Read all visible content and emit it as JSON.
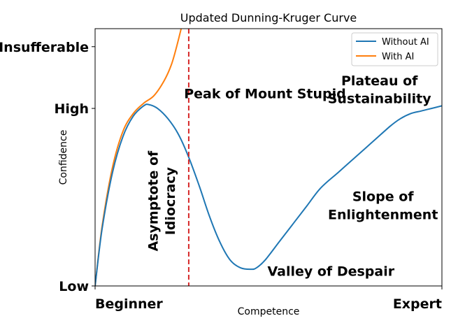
{
  "chart_data": {
    "type": "line",
    "title": "Updated Dunning-Kruger Curve",
    "xlabel": "Competence",
    "ylabel": "Confidence",
    "xlim": [
      0,
      1
    ],
    "ylim": [
      0,
      1
    ],
    "x_ticks": [
      {
        "value": 0,
        "label": "Beginner"
      },
      {
        "value": 1,
        "label": "Expert"
      }
    ],
    "y_ticks": [
      {
        "value": 0,
        "label": "Low"
      },
      {
        "value": 0.69,
        "label": "High"
      },
      {
        "value": 0.93,
        "label": "Insufferable"
      }
    ],
    "legend_position": "top-right",
    "series": [
      {
        "name": "Without AI",
        "color": "#1f77b4",
        "x": [
          0,
          0.02,
          0.05,
          0.08,
          0.11,
          0.14,
          0.155,
          0.18,
          0.21,
          0.24,
          0.27,
          0.3,
          0.33,
          0.36,
          0.39,
          0.42,
          0.45,
          0.465,
          0.49,
          0.53,
          0.57,
          0.61,
          0.65,
          0.7,
          0.75,
          0.8,
          0.85,
          0.88,
          0.91,
          0.94,
          0.97,
          1.0
        ],
        "y": [
          0,
          0.22,
          0.44,
          0.58,
          0.66,
          0.7,
          0.705,
          0.69,
          0.65,
          0.59,
          0.5,
          0.39,
          0.27,
          0.17,
          0.1,
          0.07,
          0.065,
          0.07,
          0.1,
          0.17,
          0.24,
          0.31,
          0.38,
          0.44,
          0.5,
          0.56,
          0.62,
          0.65,
          0.67,
          0.68,
          0.69,
          0.7
        ]
      },
      {
        "name": "With AI",
        "color": "#ff7f0e",
        "x": [
          0,
          0.02,
          0.05,
          0.08,
          0.11,
          0.14,
          0.17,
          0.2,
          0.22,
          0.235,
          0.25
        ],
        "y": [
          0,
          0.23,
          0.46,
          0.6,
          0.67,
          0.71,
          0.74,
          0.8,
          0.86,
          0.93,
          1.01
        ]
      }
    ],
    "vlines": [
      {
        "x": 0.27,
        "color": "#d62728",
        "style": "dashed"
      }
    ],
    "annotations": [
      {
        "text": "Peak of Mount Stupid",
        "x": 0.49,
        "y": 0.73,
        "rotate": 0
      },
      {
        "text": "Plateau of",
        "x": 0.82,
        "y": 0.78,
        "rotate": 0
      },
      {
        "text": "Sustainability",
        "x": 0.82,
        "y": 0.71,
        "rotate": 0
      },
      {
        "text": "Slope of",
        "x": 0.83,
        "y": 0.33,
        "rotate": 0
      },
      {
        "text": "Enlightenment",
        "x": 0.83,
        "y": 0.26,
        "rotate": 0
      },
      {
        "text": "Valley of Despair",
        "x": 0.68,
        "y": 0.04,
        "rotate": 0
      },
      {
        "text": "Asymptote of",
        "x": 0.18,
        "y": 0.33,
        "rotate": -90
      },
      {
        "text": "Idiocracy",
        "x": 0.23,
        "y": 0.33,
        "rotate": -90
      }
    ]
  }
}
